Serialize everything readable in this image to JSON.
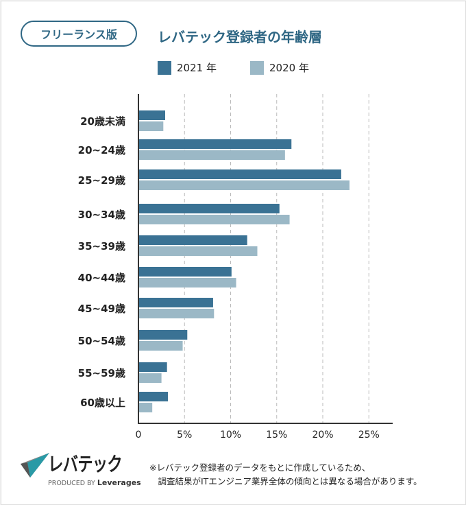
{
  "badge": "フリーランス版",
  "chart_data": {
    "type": "bar",
    "orientation": "horizontal",
    "title": "レバテック登録者の年齢層",
    "categories": [
      "20歳未満",
      "20~24歳",
      "25~29歳",
      "30~34歳",
      "35~39歳",
      "40~44歳",
      "45~49歳",
      "50~54歳",
      "55~59歳",
      "60歳以上"
    ],
    "series": [
      {
        "name": "2021 年",
        "color": "#3a7294",
        "values": [
          2.9,
          16.6,
          22.0,
          15.3,
          11.8,
          10.1,
          8.1,
          5.3,
          3.1,
          3.2
        ]
      },
      {
        "name": "2020 年",
        "color": "#9bb8c6",
        "values": [
          2.7,
          15.9,
          22.9,
          16.4,
          12.9,
          10.6,
          8.2,
          4.8,
          2.5,
          1.5
        ]
      }
    ],
    "xlim": [
      0,
      27.5
    ],
    "xticks": [
      0,
      5,
      10,
      15,
      20,
      25
    ],
    "xtick_labels": [
      "0",
      "5%",
      "10%",
      "15%",
      "20%",
      "25%"
    ],
    "grid": "vertical-dashed",
    "legend": "top"
  },
  "logo": {
    "name": "レバテック",
    "produced_by": "PRODUCED BY",
    "brand": "Leverages"
  },
  "note": "※レバテック登録者のデータをもとに作成しているため、\n　調査結果がITエンジニア業界全体の傾向とは異なる場合があります。"
}
